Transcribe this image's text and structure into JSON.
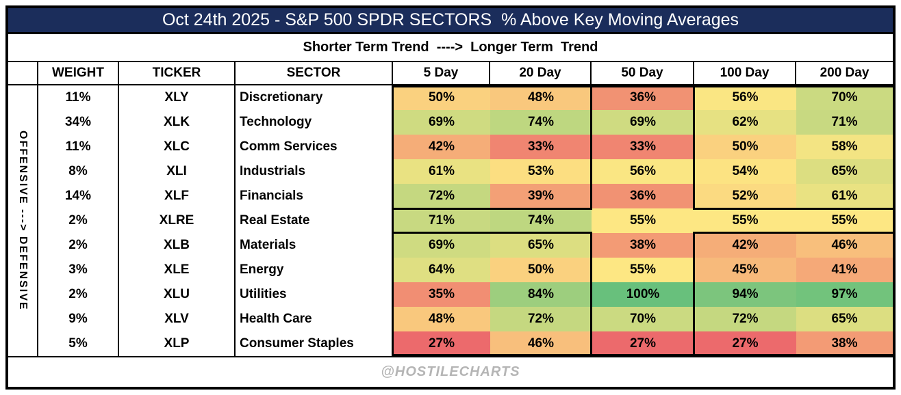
{
  "title": "Oct 24th 2025 - S&P 500 SPDR SECTORS  % Above Key Moving Averages",
  "subtitle": "Shorter Term Trend  ---->  Longer Term  Trend",
  "footer": "@HOSTILECHARTS",
  "colors": {
    "title_bg": "#1b2d5b",
    "title_text": "#ffffff",
    "footer_text": "#b5b5b5",
    "border": "#000000"
  },
  "chart_data": {
    "type": "heatmap",
    "title": "Oct 24th 2025 - S&P 500 SPDR SECTORS  % Above Key Moving Averages",
    "subtitle": "Shorter Term Trend  ---->  Longer Term  Trend",
    "row_axis_label": "OFFENSIVE ---> DEFENSIVE",
    "meta_columns": [
      "WEIGHT",
      "TICKER",
      "SECTOR"
    ],
    "columns": [
      "5 Day",
      "20 Day",
      "50 Day",
      "100 Day",
      "200 Day"
    ],
    "value_format": "percent",
    "rows": [
      {
        "weight": "11%",
        "ticker": "XLY",
        "sector": "Discretionary",
        "values": [
          50,
          48,
          36,
          56,
          70
        ]
      },
      {
        "weight": "34%",
        "ticker": "XLK",
        "sector": "Technology",
        "values": [
          69,
          74,
          69,
          62,
          71
        ]
      },
      {
        "weight": "11%",
        "ticker": "XLC",
        "sector": "Comm Services",
        "values": [
          42,
          33,
          33,
          50,
          58
        ]
      },
      {
        "weight": "8%",
        "ticker": "XLI",
        "sector": "Industrials",
        "values": [
          61,
          53,
          56,
          54,
          65
        ]
      },
      {
        "weight": "14%",
        "ticker": "XLF",
        "sector": "Financials",
        "values": [
          72,
          39,
          36,
          52,
          61
        ]
      },
      {
        "weight": "2%",
        "ticker": "XLRE",
        "sector": "Real Estate",
        "values": [
          71,
          74,
          55,
          55,
          55
        ]
      },
      {
        "weight": "2%",
        "ticker": "XLB",
        "sector": "Materials",
        "values": [
          69,
          65,
          38,
          42,
          46
        ]
      },
      {
        "weight": "3%",
        "ticker": "XLE",
        "sector": "Energy",
        "values": [
          64,
          50,
          55,
          45,
          41
        ]
      },
      {
        "weight": "2%",
        "ticker": "XLU",
        "sector": "Utilities",
        "values": [
          35,
          84,
          100,
          94,
          97
        ]
      },
      {
        "weight": "9%",
        "ticker": "XLV",
        "sector": "Health Care",
        "values": [
          48,
          72,
          70,
          72,
          65
        ]
      },
      {
        "weight": "5%",
        "ticker": "XLP",
        "sector": "Consumer Staples",
        "values": [
          27,
          46,
          27,
          27,
          38
        ]
      }
    ],
    "color_scale": {
      "min": {
        "value": 27,
        "color": "#ec6a6c"
      },
      "mid": {
        "value": 55,
        "color": "#fde783"
      },
      "max": {
        "value": 100,
        "color": "#68c07c"
      }
    },
    "legend_position": "none",
    "grid": "thick-group-borders"
  }
}
